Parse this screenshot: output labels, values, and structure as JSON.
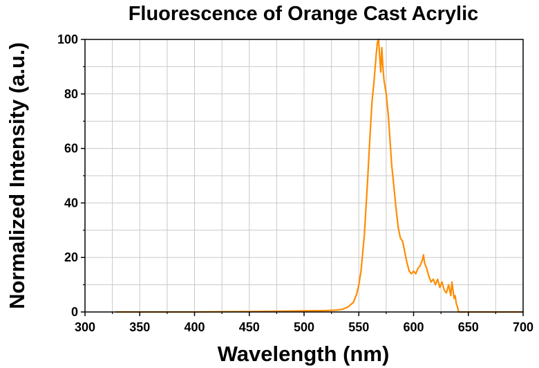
{
  "chart_data": {
    "type": "line",
    "title": "Fluorescence of Orange Cast Acrylic",
    "xlabel": "Wavelength (nm)",
    "ylabel": "Normalized Intensity (a.u.)",
    "xlim": [
      300,
      700
    ],
    "ylim": [
      0,
      100
    ],
    "xticks": [
      300,
      350,
      400,
      450,
      500,
      550,
      600,
      650,
      700
    ],
    "yticks": [
      0,
      20,
      40,
      60,
      80,
      100
    ],
    "grid": true,
    "series": [
      {
        "name": "Orange Cast Acrylic",
        "color": "#ff8c00",
        "x": [
          328,
          400,
          460,
          480,
          500,
          520,
          530,
          535,
          540,
          545,
          548,
          550,
          552,
          555,
          558,
          560,
          562,
          564,
          565,
          566,
          567,
          568,
          569,
          570,
          571,
          572,
          573,
          575,
          577,
          578,
          580,
          582,
          584,
          586,
          588,
          590,
          592,
          594,
          596,
          598,
          600,
          602,
          604,
          606,
          608,
          609,
          610,
          612,
          614,
          616,
          618,
          620,
          622,
          624,
          626,
          628,
          630,
          632,
          634,
          635,
          636,
          637,
          638,
          639,
          640,
          641,
          645,
          660,
          700
        ],
        "y": [
          0,
          0,
          0.2,
          0.3,
          0.4,
          0.5,
          0.7,
          1.0,
          1.8,
          3.5,
          6.5,
          10,
          15,
          28,
          48,
          63,
          77,
          85,
          90,
          95,
          99,
          100,
          94,
          88,
          97,
          90,
          85,
          80,
          72,
          66,
          54,
          46,
          38,
          31,
          27,
          26,
          22,
          18,
          15,
          14,
          15,
          14,
          16,
          17,
          19,
          21,
          18,
          16,
          13,
          11,
          12,
          10,
          12,
          9,
          11,
          8,
          7,
          10,
          6,
          11,
          8,
          5,
          6,
          3,
          2,
          0,
          0,
          0,
          0
        ]
      }
    ]
  }
}
